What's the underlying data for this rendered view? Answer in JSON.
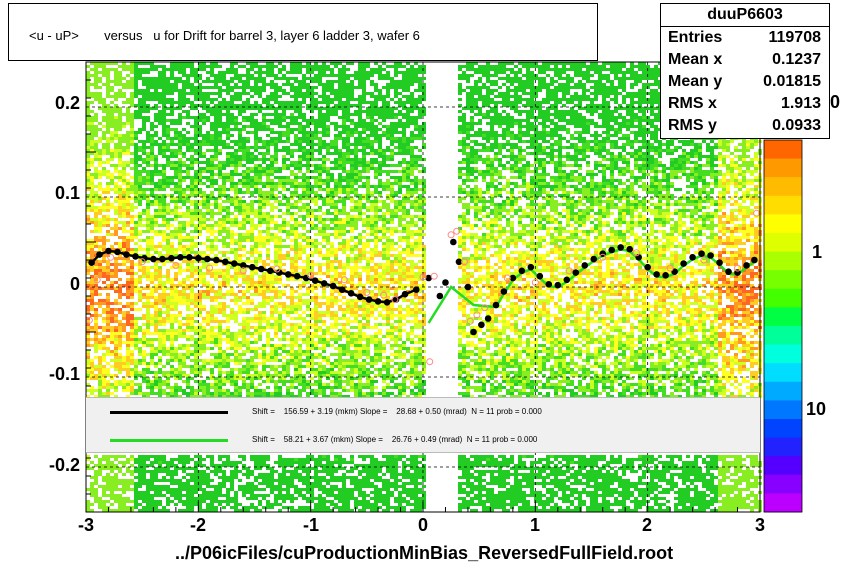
{
  "title": "<u - uP>       versus   u for Drift for barrel 3, layer 6 ladder 3, wafer 6",
  "xlabel": "../P06icFiles/cuProductionMinBias_ReversedFullField.root",
  "stats": {
    "name": "duuP6603",
    "rows": [
      {
        "k": "Entries",
        "v": "119708"
      },
      {
        "k": "Mean x",
        "v": "0.1237"
      },
      {
        "k": "Mean y",
        "v": "0.01815"
      },
      {
        "k": "RMS x",
        "v": "1.913"
      },
      {
        "k": "RMS y",
        "v": "0.0933"
      }
    ]
  },
  "legend": [
    {
      "color": "#000000",
      "text": "Shift =    156.59 + 3.19 (mkm) Slope =    28.68 + 0.50 (mrad)  N = 11 prob = 0.000"
    },
    {
      "color": "#22dd22",
      "text": "Shift =    58.21 + 3.67 (mkm) Slope =    26.76 + 0.49 (mrad)  N = 11 prob = 0.000"
    }
  ],
  "colors": {
    "heat_low": "#22cc22",
    "heat_mid": "#ffff00",
    "heat_high": "#ff6600",
    "fit_black": "#000000",
    "fit_green": "#22dd22",
    "profile_points": "#000000",
    "open_markers": "#ff8888"
  },
  "z_labels": [
    "1",
    "10",
    "0"
  ],
  "chart_data": {
    "type": "heatmap",
    "title": "<u - uP>       versus   u for Drift for barrel 3, layer 6 ladder 3, wafer 6",
    "xlabel": "../P06icFiles/cuProductionMinBias_ReversedFullField.root",
    "ylabel": "",
    "xlim": [
      -3,
      3
    ],
    "ylim": [
      -0.25,
      0.25
    ],
    "x_ticks": [
      "-3",
      "-2",
      "-1",
      "0",
      "1",
      "2",
      "3"
    ],
    "y_ticks": [
      "0.2",
      "0.1",
      "0",
      "-0.1",
      "-0.2"
    ],
    "z_scale": "log",
    "grid": true,
    "series": [
      {
        "marker": "filled-circle",
        "x": [
          -2.95,
          -2.88,
          -2.8,
          -2.72,
          -2.64,
          -2.56,
          -2.48,
          -2.4,
          -2.32,
          -2.24,
          -2.16,
          -2.08,
          -2.0,
          -1.92,
          -1.84,
          -1.76,
          -1.68,
          -1.6,
          -1.52,
          -1.44,
          -1.36,
          -1.28,
          -1.2,
          -1.12,
          -1.04,
          -0.96,
          -0.88,
          -0.8,
          -0.72,
          -0.64,
          -0.56,
          -0.48,
          -0.4,
          -0.32,
          -0.24,
          -0.16,
          -0.06,
          0.05,
          0.15,
          0.2,
          0.27,
          0.32,
          0.4,
          0.45,
          0.52,
          0.58,
          0.65,
          0.72,
          0.8,
          0.88,
          0.96,
          1.04,
          1.12,
          1.2,
          1.28,
          1.36,
          1.44,
          1.52,
          1.6,
          1.68,
          1.76,
          1.84,
          1.92,
          2.0,
          2.08,
          2.16,
          2.24,
          2.32,
          2.4,
          2.48,
          2.56,
          2.64,
          2.72,
          2.8,
          2.88,
          2.95
        ],
        "y": [
          0.027,
          0.036,
          0.04,
          0.039,
          0.036,
          0.034,
          0.032,
          0.031,
          0.031,
          0.032,
          0.033,
          0.033,
          0.032,
          0.031,
          0.03,
          0.028,
          0.026,
          0.024,
          0.022,
          0.02,
          0.018,
          0.016,
          0.014,
          0.012,
          0.01,
          0.007,
          0.004,
          0.001,
          -0.003,
          -0.007,
          -0.011,
          -0.014,
          -0.016,
          -0.017,
          -0.014,
          -0.008,
          -0.003,
          0.01,
          -0.01,
          0.005,
          0.05,
          0.028,
          0.0,
          -0.05,
          -0.042,
          -0.035,
          -0.02,
          -0.005,
          0.01,
          0.018,
          0.022,
          0.012,
          0.003,
          0.002,
          0.008,
          0.016,
          0.024,
          0.031,
          0.037,
          0.041,
          0.044,
          0.042,
          0.033,
          0.022,
          0.014,
          0.013,
          0.017,
          0.026,
          0.033,
          0.037,
          0.035,
          0.027,
          0.017,
          0.016,
          0.024,
          0.03
        ]
      },
      {
        "marker": "open-circle",
        "x": [
          -2.97,
          -2.9,
          -2.78,
          -2.5,
          -2.2,
          -1.9,
          -1.6,
          -1.3,
          -1.0,
          -0.7,
          -0.5,
          -0.35,
          -0.25,
          0.0,
          0.06,
          0.1,
          0.25,
          0.3,
          0.37,
          0.42,
          0.48,
          0.55,
          0.75,
          1.0,
          1.3,
          1.6,
          1.9,
          2.2,
          2.5,
          2.8,
          2.97
        ],
        "y": [
          -0.037,
          0.008,
          0.033,
          0.028,
          0.024,
          0.021,
          0.018,
          0.02,
          0.013,
          0.008,
          -0.006,
          -0.009,
          -0.014,
          0.011,
          -0.083,
          0.012,
          0.058,
          0.062,
          0.028,
          -0.038,
          -0.031,
          -0.023,
          0.01,
          0.005,
          0.018,
          0.033,
          0.038,
          0.021,
          0.03,
          0.021,
          0.082
        ]
      }
    ]
  }
}
